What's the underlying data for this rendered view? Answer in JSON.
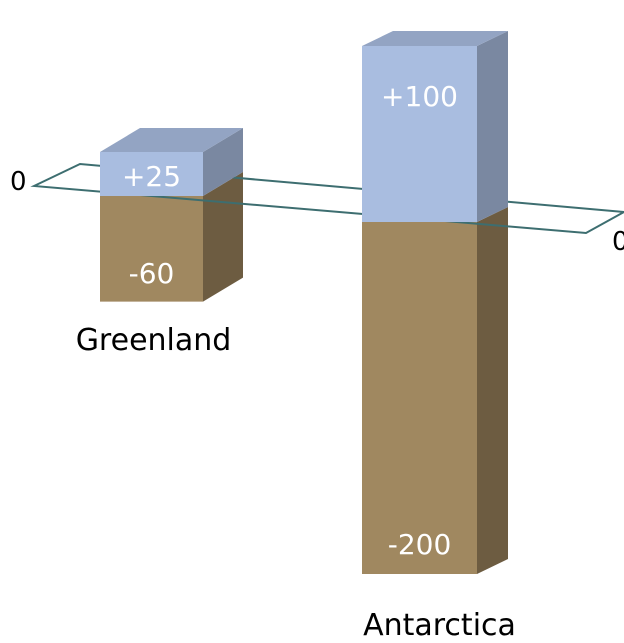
{
  "chart_data": {
    "type": "bar",
    "style": "3d-stacked-positive-negative",
    "categories": [
      "Greenland",
      "Antarctica"
    ],
    "series": [
      {
        "values": [
          25,
          100
        ],
        "labels": [
          "+25",
          "+100"
        ],
        "color": "#a9bde0"
      },
      {
        "values": [
          -60,
          -200
        ],
        "labels": [
          "-60",
          "-200"
        ],
        "color": "#a08860"
      }
    ],
    "baseline": {
      "value": 0,
      "left_label": "0",
      "right_label": "0",
      "color": "#3d6e70"
    }
  }
}
